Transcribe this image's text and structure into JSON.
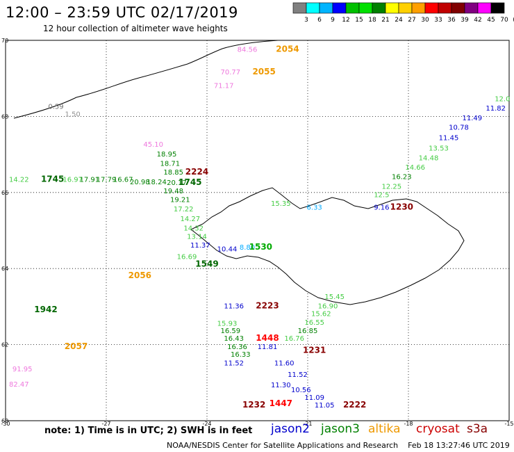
{
  "title": "12:00 – 23:59 UTC 02/17/2019",
  "subtitle": "12 hour collection of altimeter wave heights",
  "legend": {
    "colors": [
      "#808080",
      "#00ffff",
      "#00b4ff",
      "#0000ff",
      "#00c000",
      "#00e000",
      "#008000",
      "#ffff00",
      "#ffd000",
      "#ffa000",
      "#ff0000",
      "#c00000",
      "#800000",
      "#800080",
      "#ff00ff",
      "#000000"
    ],
    "labels": [
      "3",
      "6",
      "9",
      "12",
      "15",
      "18",
      "21",
      "24",
      "27",
      "30",
      "33",
      "36",
      "39",
      "42",
      "45",
      "70",
      "(ft)"
    ]
  },
  "axes": {
    "lon_ticks": [
      "-30",
      "-27",
      "-24",
      "-21",
      "-18",
      "-15"
    ],
    "lat_ticks": [
      "70",
      "68",
      "66",
      "64",
      "62",
      "60"
    ]
  },
  "annotations": [
    {
      "text": "84.56",
      "color": "#ee77dd",
      "lon": -22.8,
      "lat": 69.7
    },
    {
      "text": "2054",
      "color": "#ee9900",
      "lon": -21.6,
      "lat": 69.7
    },
    {
      "text": "70.77",
      "color": "#ee77dd",
      "lon": -23.3,
      "lat": 69.1
    },
    {
      "text": "2055",
      "color": "#ee9900",
      "lon": -22.3,
      "lat": 69.1
    },
    {
      "text": "71.17",
      "color": "#ee77dd",
      "lon": -23.5,
      "lat": 68.75
    },
    {
      "text": "0.59",
      "color": "#707070",
      "lon": -28.5,
      "lat": 68.2
    },
    {
      "text": "1.50",
      "color": "#909090",
      "lon": -28.0,
      "lat": 68.0
    },
    {
      "text": "45.10",
      "color": "#ee77dd",
      "lon": -25.6,
      "lat": 67.2
    },
    {
      "text": "18.95",
      "color": "#008000",
      "lon": -25.2,
      "lat": 66.95
    },
    {
      "text": "18.71",
      "color": "#008000",
      "lon": -25.1,
      "lat": 66.7
    },
    {
      "text": "18.85",
      "color": "#008000",
      "lon": -25.0,
      "lat": 66.47
    },
    {
      "text": "2224",
      "color": "#880000",
      "lon": -24.3,
      "lat": 66.47
    },
    {
      "text": "14.22",
      "color": "#44cc44",
      "lon": -29.6,
      "lat": 66.28
    },
    {
      "text": "1745",
      "color": "#006600",
      "lon": -28.6,
      "lat": 66.28
    },
    {
      "text": "16.97",
      "color": "#44cc44",
      "lon": -28.0,
      "lat": 66.28
    },
    {
      "text": "17.91",
      "color": "#008000",
      "lon": -27.5,
      "lat": 66.28
    },
    {
      "text": "17.79",
      "color": "#008000",
      "lon": -27.0,
      "lat": 66.28
    },
    {
      "text": "16.67",
      "color": "#008000",
      "lon": -26.5,
      "lat": 66.28
    },
    {
      "text": "20.98",
      "color": "#008000",
      "lon": -26.0,
      "lat": 66.22
    },
    {
      "text": "18.24",
      "color": "#008000",
      "lon": -25.5,
      "lat": 66.22
    },
    {
      "text": "20.17",
      "color": "#008000",
      "lon": -24.9,
      "lat": 66.2
    },
    {
      "text": "1745",
      "color": "#006600",
      "lon": -24.5,
      "lat": 66.2
    },
    {
      "text": "19.48",
      "color": "#008000",
      "lon": -25.0,
      "lat": 65.98
    },
    {
      "text": "19.21",
      "color": "#008000",
      "lon": -24.8,
      "lat": 65.75
    },
    {
      "text": "17.22",
      "color": "#44cc44",
      "lon": -24.7,
      "lat": 65.5
    },
    {
      "text": "14.27",
      "color": "#44cc44",
      "lon": -24.5,
      "lat": 65.25
    },
    {
      "text": "14.32",
      "color": "#44cc44",
      "lon": -24.4,
      "lat": 65.0
    },
    {
      "text": "13.14",
      "color": "#44cc44",
      "lon": -24.3,
      "lat": 64.78
    },
    {
      "text": "11.37",
      "color": "#0000cc",
      "lon": -24.2,
      "lat": 64.55
    },
    {
      "text": "10.44",
      "color": "#0000cc",
      "lon": -23.4,
      "lat": 64.45
    },
    {
      "text": "8.80",
      "color": "#00aaff",
      "lon": -22.8,
      "lat": 64.5
    },
    {
      "text": "1530",
      "color": "#00aa00",
      "lon": -22.4,
      "lat": 64.5
    },
    {
      "text": "16.69",
      "color": "#44cc44",
      "lon": -24.6,
      "lat": 64.25
    },
    {
      "text": "1549",
      "color": "#006600",
      "lon": -24.0,
      "lat": 64.05
    },
    {
      "text": "2056",
      "color": "#ee9900",
      "lon": -26.0,
      "lat": 63.75
    },
    {
      "text": "1942",
      "color": "#006600",
      "lon": -28.8,
      "lat": 62.85
    },
    {
      "text": "2223",
      "color": "#880000",
      "lon": -22.2,
      "lat": 62.95
    },
    {
      "text": "11.36",
      "color": "#0000cc",
      "lon": -23.2,
      "lat": 62.95
    },
    {
      "text": "15.93",
      "color": "#44cc44",
      "lon": -23.4,
      "lat": 62.5
    },
    {
      "text": "16.59",
      "color": "#008000",
      "lon": -23.3,
      "lat": 62.3
    },
    {
      "text": "16.43",
      "color": "#008000",
      "lon": -23.2,
      "lat": 62.1
    },
    {
      "text": "1448",
      "color": "#ff0000",
      "lon": -22.2,
      "lat": 62.1
    },
    {
      "text": "16.36",
      "color": "#008000",
      "lon": -23.1,
      "lat": 61.88
    },
    {
      "text": "11.81",
      "color": "#0000cc",
      "lon": -22.2,
      "lat": 61.88
    },
    {
      "text": "2057",
      "color": "#ee9900",
      "lon": -27.9,
      "lat": 61.88
    },
    {
      "text": "1231",
      "color": "#880000",
      "lon": -20.8,
      "lat": 61.78
    },
    {
      "text": "16.33",
      "color": "#008000",
      "lon": -23.0,
      "lat": 61.68
    },
    {
      "text": "11.52",
      "color": "#0000cc",
      "lon": -23.2,
      "lat": 61.45
    },
    {
      "text": "11.60",
      "color": "#0000cc",
      "lon": -21.7,
      "lat": 61.45
    },
    {
      "text": "91.95",
      "color": "#ee77dd",
      "lon": -29.5,
      "lat": 61.3
    },
    {
      "text": "82.47",
      "color": "#ee77dd",
      "lon": -29.6,
      "lat": 60.9
    },
    {
      "text": "11.52",
      "color": "#0000cc",
      "lon": -21.3,
      "lat": 61.15
    },
    {
      "text": "11.30",
      "color": "#0000cc",
      "lon": -21.8,
      "lat": 60.88
    },
    {
      "text": "10.56",
      "color": "#0000cc",
      "lon": -21.2,
      "lat": 60.75
    },
    {
      "text": "11.09",
      "color": "#0000cc",
      "lon": -20.8,
      "lat": 60.55
    },
    {
      "text": "11.05",
      "color": "#0000cc",
      "lon": -20.5,
      "lat": 60.35
    },
    {
      "text": "2222",
      "color": "#880000",
      "lon": -19.6,
      "lat": 60.35
    },
    {
      "text": "1232",
      "color": "#880000",
      "lon": -22.6,
      "lat": 60.35
    },
    {
      "text": "1447",
      "color": "#ff0000",
      "lon": -21.8,
      "lat": 60.38
    },
    {
      "text": "15.45",
      "color": "#44cc44",
      "lon": -20.2,
      "lat": 63.2
    },
    {
      "text": "16.90",
      "color": "#44cc44",
      "lon": -20.4,
      "lat": 62.95
    },
    {
      "text": "15.62",
      "color": "#44cc44",
      "lon": -20.6,
      "lat": 62.75
    },
    {
      "text": "16.55",
      "color": "#44cc44",
      "lon": -20.8,
      "lat": 62.52
    },
    {
      "text": "16.85",
      "color": "#008000",
      "lon": -21.0,
      "lat": 62.3
    },
    {
      "text": "16.76",
      "color": "#44cc44",
      "lon": -21.4,
      "lat": 62.1
    },
    {
      "text": "12.0",
      "color": "#44cc44",
      "lon": -15.2,
      "lat": 68.4
    },
    {
      "text": "11.82",
      "color": "#0000cc",
      "lon": -15.4,
      "lat": 68.15
    },
    {
      "text": "11.49",
      "color": "#0000cc",
      "lon": -16.1,
      "lat": 67.9
    },
    {
      "text": "10.78",
      "color": "#0000cc",
      "lon": -16.5,
      "lat": 67.65
    },
    {
      "text": "11.45",
      "color": "#0000cc",
      "lon": -16.8,
      "lat": 67.38
    },
    {
      "text": "13.53",
      "color": "#44cc44",
      "lon": -17.1,
      "lat": 67.1
    },
    {
      "text": "14.48",
      "color": "#44cc44",
      "lon": -17.4,
      "lat": 66.85
    },
    {
      "text": "14.66",
      "color": "#44cc44",
      "lon": -17.8,
      "lat": 66.6
    },
    {
      "text": "16.23",
      "color": "#008000",
      "lon": -18.2,
      "lat": 66.35
    },
    {
      "text": "12.25",
      "color": "#44cc44",
      "lon": -18.5,
      "lat": 66.1
    },
    {
      "text": "12.5",
      "color": "#44cc44",
      "lon": -18.8,
      "lat": 65.88
    },
    {
      "text": "9.16",
      "color": "#0000cc",
      "lon": -18.8,
      "lat": 65.55
    },
    {
      "text": "1230",
      "color": "#880000",
      "lon": -18.2,
      "lat": 65.55
    },
    {
      "text": "15.35",
      "color": "#44cc44",
      "lon": -21.8,
      "lat": 65.65
    },
    {
      "text": "6.33",
      "color": "#00aaff",
      "lon": -20.8,
      "lat": 65.55
    }
  ],
  "note": "note:  1) Time is in UTC;  2) SWH is in feet",
  "satellites": [
    {
      "name": "jason2",
      "color": "#0000cc"
    },
    {
      "name": "jason3",
      "color": "#008000"
    },
    {
      "name": "altika",
      "color": "#ee9900"
    },
    {
      "name": "cryosat",
      "color": "#cc0000"
    },
    {
      "name": "s3a",
      "color": "#880000"
    }
  ],
  "credit": "NOAA/NESDIS Center for Satellite Applications and Research    Feb 18 13:27:46 UTC 2019"
}
